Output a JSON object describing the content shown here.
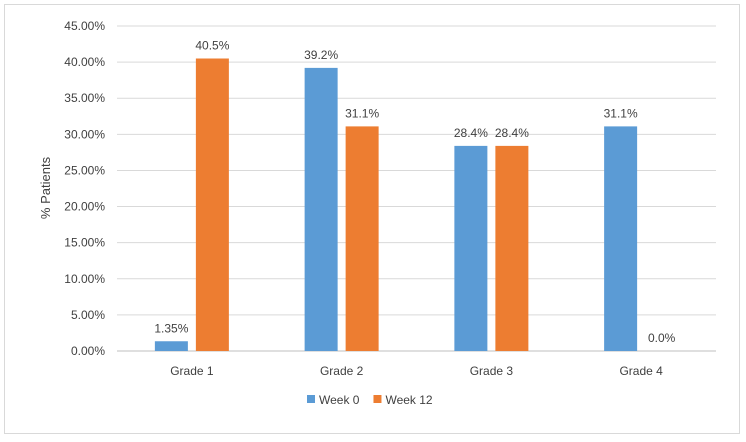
{
  "chart_data": {
    "type": "bar",
    "categories": [
      "Grade 1",
      "Grade 2",
      "Grade 3",
      "Grade 4"
    ],
    "series": [
      {
        "name": "Week 0",
        "color": "#5b9bd5",
        "values": [
          1.35,
          39.2,
          28.4,
          31.1
        ],
        "labels": [
          "1.35%",
          "39.2%",
          "28.4%",
          "31.1%"
        ]
      },
      {
        "name": "Week 12",
        "color": "#ed7d31",
        "values": [
          40.5,
          31.1,
          28.4,
          0.0
        ],
        "labels": [
          "40.5%",
          "31.1%",
          "28.4%",
          "0.0%"
        ]
      }
    ],
    "ylabel": "% Patients",
    "xlabel": "",
    "ylim": [
      0,
      45
    ],
    "yticks": [
      0,
      5,
      10,
      15,
      20,
      25,
      30,
      35,
      40,
      45
    ],
    "ytick_labels": [
      "0.00%",
      "5.00%",
      "10.00%",
      "15.00%",
      "20.00%",
      "25.00%",
      "30.00%",
      "35.00%",
      "40.00%",
      "45.00%"
    ],
    "grid": true,
    "legend": "bottom"
  }
}
